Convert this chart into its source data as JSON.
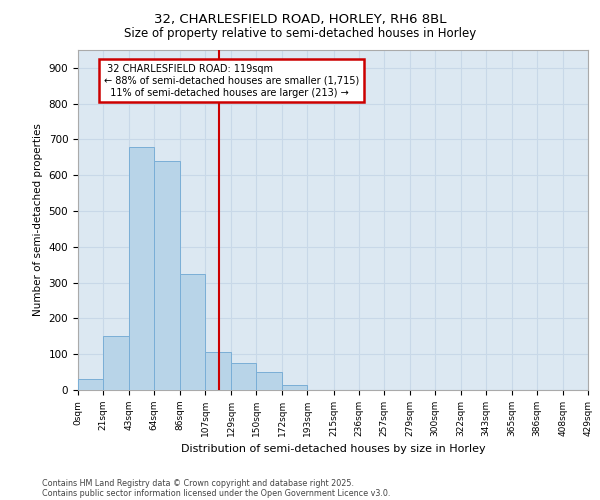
{
  "title_line1": "32, CHARLESFIELD ROAD, HORLEY, RH6 8BL",
  "title_line2": "Size of property relative to semi-detached houses in Horley",
  "xlabel": "Distribution of semi-detached houses by size in Horley",
  "ylabel": "Number of semi-detached properties",
  "property_label": "32 CHARLESFIELD ROAD: 119sqm",
  "pct_smaller": 88,
  "count_smaller": 1715,
  "pct_larger": 11,
  "count_larger": 213,
  "bin_edges": [
    0,
    21,
    43,
    64,
    86,
    107,
    129,
    150,
    172,
    193,
    215,
    236,
    257,
    279,
    300,
    322,
    343,
    365,
    386,
    408,
    429
  ],
  "bin_labels": [
    "0sqm",
    "21sqm",
    "43sqm",
    "64sqm",
    "86sqm",
    "107sqm",
    "129sqm",
    "150sqm",
    "172sqm",
    "193sqm",
    "215sqm",
    "236sqm",
    "257sqm",
    "279sqm",
    "300sqm",
    "322sqm",
    "343sqm",
    "365sqm",
    "386sqm",
    "408sqm",
    "429sqm"
  ],
  "bar_heights": [
    30,
    150,
    680,
    640,
    325,
    105,
    75,
    50,
    15,
    0,
    0,
    0,
    0,
    0,
    0,
    0,
    0,
    0,
    0,
    0
  ],
  "bar_color": "#b8d4e8",
  "bar_edge_color": "#7aaed6",
  "vline_color": "#cc0000",
  "vline_x": 119,
  "ylim": [
    0,
    950
  ],
  "yticks": [
    0,
    100,
    200,
    300,
    400,
    500,
    600,
    700,
    800,
    900
  ],
  "grid_color": "#c8d8e8",
  "bg_color": "#dce8f2",
  "annotation_box_color": "#cc0000",
  "footnote1": "Contains HM Land Registry data © Crown copyright and database right 2025.",
  "footnote2": "Contains public sector information licensed under the Open Government Licence v3.0."
}
